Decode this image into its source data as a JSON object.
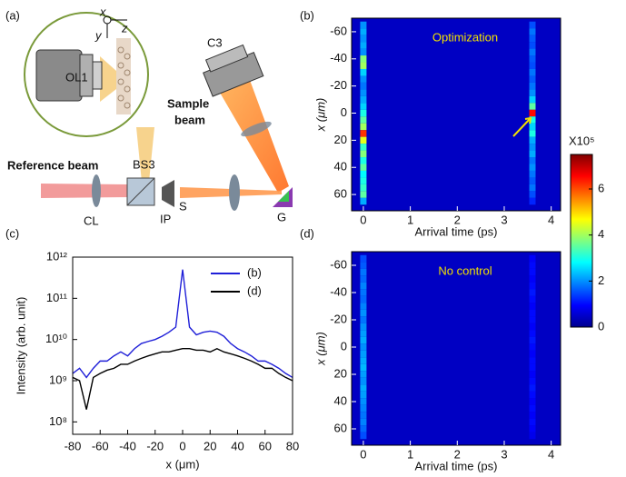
{
  "figure": {
    "panel_labels": [
      "(a)",
      "(b)",
      "(c)",
      "(d)"
    ]
  },
  "diagram": {
    "objective": "OL1",
    "camera": "C3",
    "sample_beam": [
      "Sample",
      "beam"
    ],
    "reference_beam": "Reference beam",
    "beam_splitter": "BS3",
    "lens": "CL",
    "iris": "IP",
    "slit": "S",
    "grating": "G",
    "axes": [
      "x",
      "y",
      "z"
    ]
  },
  "chart_data": [
    {
      "type": "line",
      "xlabel": "x (μm)",
      "ylabel": "Intensity (arb. unit)",
      "yscale": "log",
      "x": [
        -80,
        -75,
        -70,
        -65,
        -60,
        -55,
        -50,
        -45,
        -40,
        -35,
        -30,
        -25,
        -20,
        -15,
        -10,
        -5,
        0,
        5,
        10,
        15,
        20,
        25,
        30,
        35,
        40,
        45,
        50,
        55,
        60,
        65,
        70,
        75,
        80
      ],
      "series": [
        {
          "name": "(b)",
          "color": "#1f1fd8",
          "values": [
            1500000000.0,
            2000000000.0,
            1200000000.0,
            2000000000.0,
            3000000000.0,
            3000000000.0,
            4000000000.0,
            5000000000.0,
            4000000000.0,
            6000000000.0,
            8000000000.0,
            9000000000.0,
            10000000000.0,
            12000000000.0,
            15000000000.0,
            20000000000.0,
            500000000000.0,
            20000000000.0,
            13000000000.0,
            15000000000.0,
            16000000000.0,
            15000000000.0,
            12000000000.0,
            8000000000.0,
            6000000000.0,
            5000000000.0,
            4000000000.0,
            3000000000.0,
            3000000000.0,
            2500000000.0,
            2000000000.0,
            1500000000.0,
            1200000000.0
          ]
        },
        {
          "name": "(d)",
          "color": "#000000",
          "values": [
            1200000000.0,
            1000000000.0,
            200000000.0,
            1200000000.0,
            1500000000.0,
            1800000000.0,
            2000000000.0,
            2500000000.0,
            2500000000.0,
            3000000000.0,
            3500000000.0,
            4000000000.0,
            4500000000.0,
            5000000000.0,
            5000000000.0,
            5500000000.0,
            6000000000.0,
            6000000000.0,
            5500000000.0,
            5500000000.0,
            5000000000.0,
            6000000000.0,
            5000000000.0,
            4500000000.0,
            4000000000.0,
            3500000000.0,
            3000000000.0,
            2500000000.0,
            2000000000.0,
            2000000000.0,
            1500000000.0,
            1200000000.0,
            1000000000.0
          ]
        }
      ],
      "xlim": [
        -80,
        80
      ],
      "xticks": [
        -80,
        -60,
        -40,
        -20,
        0,
        20,
        40,
        60,
        80
      ],
      "ylim": [
        50000000,
        1000000000000
      ],
      "yticks": [
        {
          "value": 100000000,
          "label": "10⁸"
        },
        {
          "value": 1000000000,
          "label": "10⁹"
        },
        {
          "value": 10000000000,
          "label": "10¹⁰"
        },
        {
          "value": 100000000000,
          "label": "10¹¹"
        },
        {
          "value": 1000000000000,
          "label": "10¹²"
        }
      ],
      "legend": "upper right"
    },
    {
      "type": "heatmap",
      "title": "Optimization",
      "xlabel": "Arrival time (ps)",
      "ylabel": "x (μm)",
      "xlim": [
        -0.25,
        4.2
      ],
      "xticks": [
        0,
        1,
        2,
        3,
        4
      ],
      "ylim": [
        72,
        -70
      ],
      "yticks": [
        -60,
        -40,
        -20,
        0,
        20,
        40,
        60
      ],
      "background": 0.5,
      "y": [
        -65,
        -60,
        -55,
        -50,
        -45,
        -40,
        -35,
        -30,
        -25,
        -20,
        -15,
        -10,
        -5,
        0,
        5,
        10,
        15,
        20,
        25,
        30,
        35,
        40,
        45,
        50,
        55,
        60,
        65
      ],
      "columns": [
        {
          "t": 0,
          "values": [
            2.0,
            2.2,
            2.0,
            2.2,
            2.0,
            3.8,
            4.0,
            2.5,
            2.0,
            1.8,
            2.0,
            2.2,
            2.5,
            3.0,
            3.5,
            4.0,
            6.2,
            4.5,
            3.2,
            3.8,
            3.0,
            3.5,
            2.8,
            3.0,
            3.2,
            3.5,
            2.2
          ]
        },
        {
          "t": 3.6,
          "values": [
            1.5,
            1.8,
            1.6,
            1.5,
            1.8,
            1.6,
            1.5,
            1.8,
            1.6,
            1.8,
            2.0,
            2.5,
            3.5,
            6.5,
            3.0,
            2.5,
            3.0,
            2.2,
            2.0,
            2.2,
            1.8,
            2.0,
            1.8,
            1.6,
            1.8,
            1.5,
            1.2
          ]
        }
      ]
    },
    {
      "type": "heatmap",
      "title": "No control",
      "xlabel": "Arrival time (ps)",
      "ylabel": "x (μm)",
      "xlim": [
        -0.25,
        4.2
      ],
      "xticks": [
        0,
        1,
        2,
        3,
        4
      ],
      "ylim": [
        72,
        -70
      ],
      "yticks": [
        -60,
        -40,
        -20,
        0,
        20,
        40,
        60
      ],
      "background": 0.5,
      "y": [
        -65,
        -60,
        -55,
        -50,
        -45,
        -40,
        -35,
        -30,
        -25,
        -20,
        -15,
        -10,
        -5,
        0,
        5,
        10,
        15,
        20,
        25,
        30,
        35,
        40,
        45,
        50,
        55,
        60,
        65
      ],
      "columns": [
        {
          "t": 0,
          "values": [
            1.5,
            1.6,
            1.8,
            1.7,
            1.9,
            1.8,
            1.7,
            1.9,
            2.0,
            1.8,
            2.0,
            2.1,
            2.2,
            2.0,
            2.1,
            2.2,
            2.3,
            2.1,
            2.0,
            2.2,
            2.1,
            2.0,
            1.9,
            1.8,
            1.9,
            1.7,
            1.5
          ]
        },
        {
          "t": 3.6,
          "values": [
            0.9,
            1.0,
            1.0,
            0.9,
            1.0,
            1.1,
            1.0,
            0.9,
            1.0,
            1.0,
            0.9,
            1.0,
            1.1,
            1.0,
            0.9,
            1.0,
            1.0,
            0.9,
            1.0,
            1.1,
            1.0,
            0.9,
            1.0,
            0.9,
            1.0,
            0.9,
            0.8
          ]
        }
      ]
    }
  ],
  "colorbar": {
    "label": "X10⁵",
    "clim": [
      0,
      7.5
    ],
    "ticks": [
      0,
      2,
      4,
      6
    ],
    "colormap": "jet"
  }
}
